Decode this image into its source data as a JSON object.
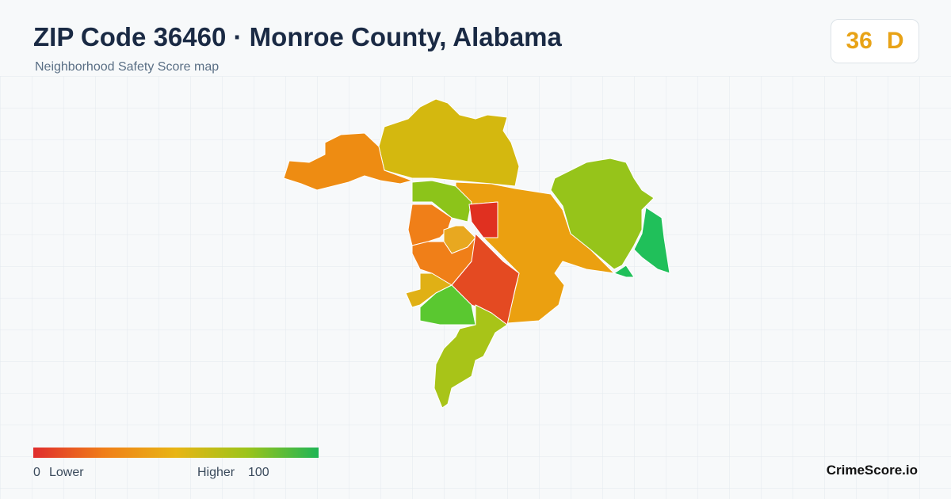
{
  "header": {
    "title": "ZIP Code 36460 · Monroe County, Alabama",
    "subtitle": "Neighborhood Safety Score map"
  },
  "badge": {
    "score": 36,
    "grade": "D"
  },
  "legend": {
    "min": 0,
    "min_label": "Lower",
    "max_label": "Higher",
    "max": 100
  },
  "brand": "CrimeScore.io"
}
